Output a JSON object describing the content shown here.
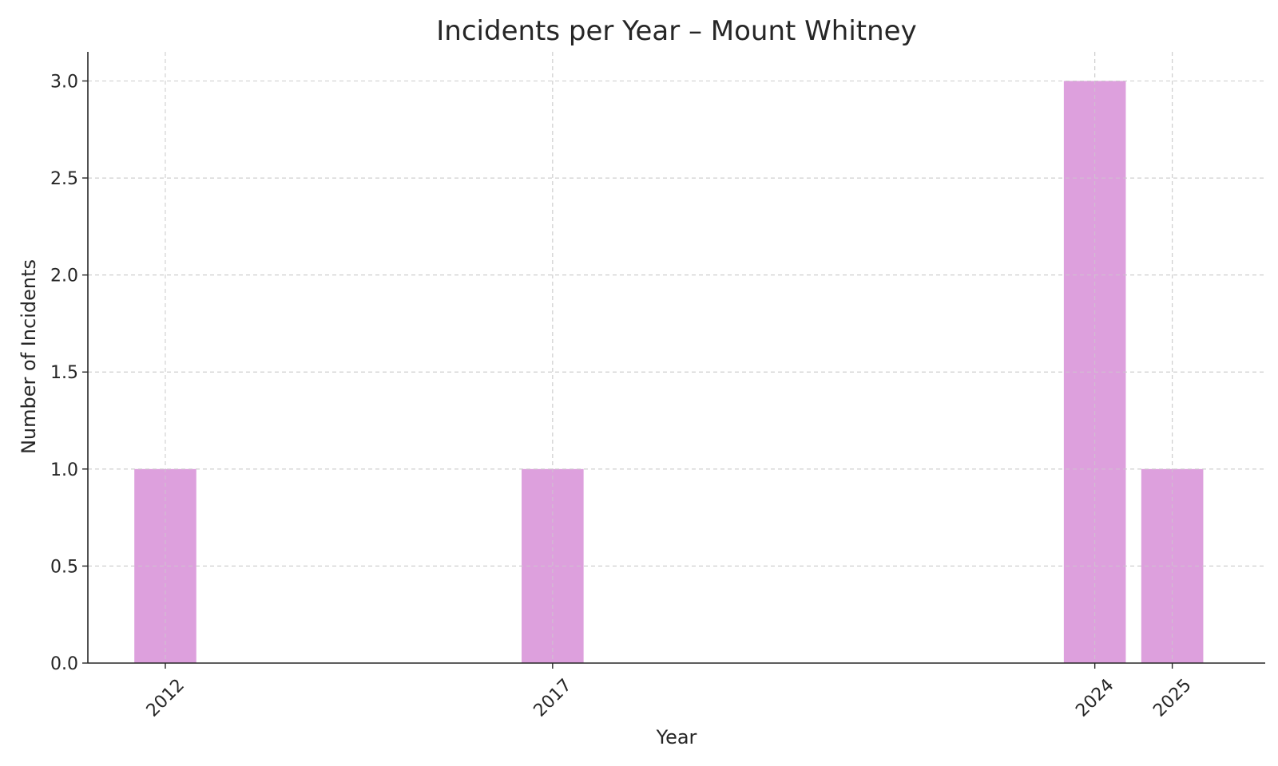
{
  "chart_data": {
    "type": "bar",
    "title": "Incidents per Year – Mount Whitney",
    "xlabel": "Year",
    "ylabel": "Number of Incidents",
    "x": [
      2012,
      2017,
      2024,
      2025
    ],
    "values": [
      1,
      1,
      3,
      1
    ],
    "x_tick_labels": [
      "2012",
      "2017",
      "2024",
      "2025"
    ],
    "y_ticks": [
      0.0,
      0.5,
      1.0,
      1.5,
      2.0,
      2.5,
      3.0
    ],
    "y_tick_labels": [
      "0.0",
      "0.5",
      "1.0",
      "1.5",
      "2.0",
      "2.5",
      "3.0"
    ],
    "ylim": [
      0,
      3.15
    ],
    "xlim": [
      2011.0,
      2026.2
    ],
    "bar_width_years": 0.8,
    "grid": true,
    "colors": {
      "bar": "#dda0dd",
      "grid": "#cccccc",
      "axis": "#262626",
      "text": "#262626"
    }
  }
}
